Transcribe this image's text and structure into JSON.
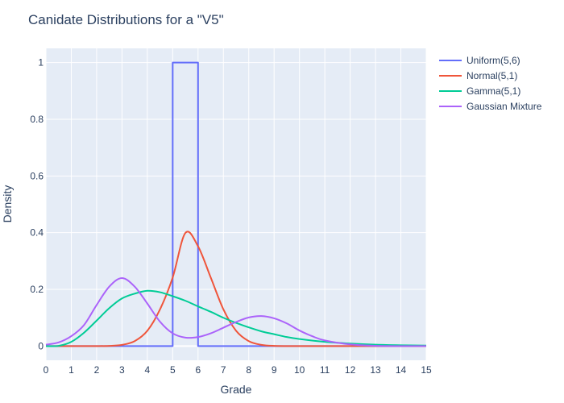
{
  "chart_data": {
    "type": "line",
    "title": "Canidate Distributions for a \"V5\"",
    "xlabel": "Grade",
    "ylabel": "Density",
    "xlim": [
      0,
      15
    ],
    "ylim": [
      -0.05,
      1.05
    ],
    "xticks": [
      0,
      1,
      2,
      3,
      4,
      5,
      6,
      7,
      8,
      9,
      10,
      11,
      12,
      13,
      14,
      15
    ],
    "yticks": [
      0,
      0.2,
      0.4,
      0.6,
      0.8,
      1
    ],
    "ytick_labels": [
      "0",
      "0.2",
      "0.4",
      "0.6",
      "0.8",
      "1"
    ],
    "grid": true,
    "legend_position": "top-right",
    "series": [
      {
        "name": "Uniform(5,6)",
        "color": "#636efa",
        "x": [
          0,
          5,
          5,
          6,
          6,
          15
        ],
        "y": [
          0,
          0,
          1,
          1,
          0,
          0
        ]
      },
      {
        "name": "Normal(5,1)",
        "color": "#ef553b",
        "x": [
          0,
          1,
          2,
          2.5,
          3,
          3.5,
          4,
          4.5,
          5,
          5.5,
          6,
          6.5,
          7,
          7.5,
          8,
          8.5,
          9,
          10,
          11,
          12,
          13,
          14,
          15
        ],
        "y": [
          0.0,
          0.0,
          0.0001,
          0.0009,
          0.0044,
          0.0175,
          0.054,
          0.1295,
          0.242,
          0.399,
          0.352,
          0.242,
          0.1295,
          0.054,
          0.0175,
          0.0044,
          0.0009,
          0.0001,
          0.0,
          0.0,
          0.0,
          0.0,
          0.0
        ]
      },
      {
        "name": "Gamma(5,1)",
        "color": "#00cc96",
        "x": [
          0,
          0.5,
          1,
          1.5,
          2,
          2.5,
          3,
          3.5,
          4,
          4.5,
          5,
          5.5,
          6,
          6.5,
          7,
          7.5,
          8,
          8.5,
          9,
          9.5,
          10,
          11,
          12,
          13,
          14,
          15
        ],
        "y": [
          0.0,
          0.001,
          0.015,
          0.047,
          0.09,
          0.134,
          0.168,
          0.185,
          0.195,
          0.19,
          0.176,
          0.16,
          0.14,
          0.121,
          0.1,
          0.082,
          0.066,
          0.052,
          0.042,
          0.032,
          0.025,
          0.015,
          0.009,
          0.005,
          0.003,
          0.002
        ]
      },
      {
        "name": "Gaussian Mixture",
        "color": "#ab63fa",
        "x": [
          0,
          0.5,
          1,
          1.5,
          2,
          2.5,
          3,
          3.5,
          4,
          4.5,
          5,
          5.5,
          6,
          6.5,
          7,
          7.5,
          8,
          8.5,
          9,
          9.5,
          10,
          10.5,
          11,
          12,
          13,
          14,
          15
        ],
        "y": [
          0.005,
          0.013,
          0.035,
          0.074,
          0.145,
          0.21,
          0.24,
          0.21,
          0.15,
          0.086,
          0.045,
          0.03,
          0.032,
          0.045,
          0.065,
          0.085,
          0.101,
          0.106,
          0.098,
          0.08,
          0.055,
          0.035,
          0.02,
          0.006,
          0.001,
          0.0,
          0.0
        ]
      }
    ]
  }
}
